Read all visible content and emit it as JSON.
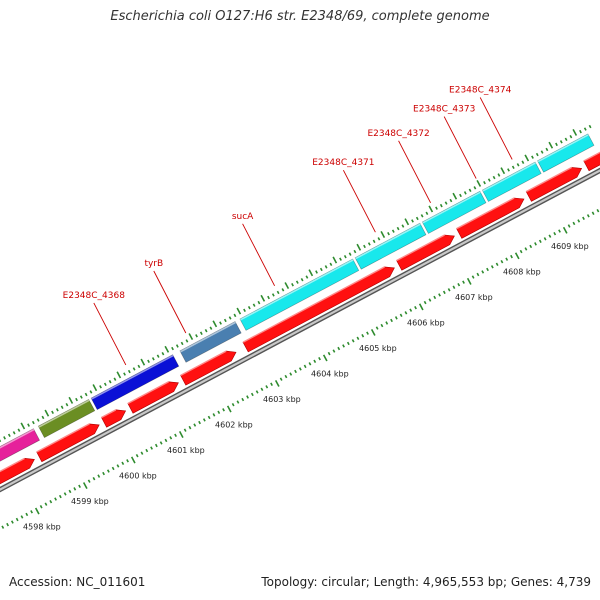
{
  "header": {
    "title": "Escherichia coli O127:H6 str. E2348/69, complete genome"
  },
  "footer": {
    "accession": "Accession: NC_011601",
    "stats": "Topology: circular; Length: 4,965,553 bp; Genes: 4,739"
  },
  "colors": {
    "label_red": "#cc0000",
    "tick_green": "#2e8b2e",
    "track_gray": "#999999",
    "pink": "#e6219b",
    "olive": "#6b8e23",
    "blue": "#0a10d6",
    "steelblue": "#4a7fb0",
    "cyan": "#18e8ec",
    "red": "#ff1010"
  },
  "chart_data": {
    "type": "genome-map",
    "scale_unit": "kbp",
    "scale_labels": [
      {
        "pos": 4598,
        "text": "4598 kbp"
      },
      {
        "pos": 4599,
        "text": "4599 kbp"
      },
      {
        "pos": 4600,
        "text": "4600 kbp"
      },
      {
        "pos": 4601,
        "text": "4601 kbp"
      },
      {
        "pos": 4602,
        "text": "4602 kbp"
      },
      {
        "pos": 4603,
        "text": "4603 kbp"
      },
      {
        "pos": 4604,
        "text": "4604 kbp"
      },
      {
        "pos": 4605,
        "text": "4605 kbp"
      },
      {
        "pos": 4606,
        "text": "4606 kbp"
      },
      {
        "pos": 4607,
        "text": "4607 kbp"
      },
      {
        "pos": 4608,
        "text": "4608 kbp"
      },
      {
        "pos": 4609,
        "text": "4609 kbp"
      }
    ],
    "gene_labels": [
      {
        "name": "E2348C_4368",
        "pos": 4600.7
      },
      {
        "name": "tyrB",
        "pos": 4601.95
      },
      {
        "name": "sucA",
        "pos": 4603.8
      },
      {
        "name": "E2348C_4371",
        "pos": 4605.9
      },
      {
        "name": "E2348C_4372",
        "pos": 4607.05
      },
      {
        "name": "E2348C_4373",
        "pos": 4608.0
      },
      {
        "name": "E2348C_4374",
        "pos": 4608.75
      }
    ],
    "outer_features": [
      {
        "start": 4597.6,
        "end": 4598.65,
        "color": "#e6219b"
      },
      {
        "start": 4598.75,
        "end": 4599.8,
        "color": "#6b8e23"
      },
      {
        "start": 4599.85,
        "end": 4601.55,
        "color": "#0a10d6"
      },
      {
        "start": 4601.7,
        "end": 4602.85,
        "color": "#4a7fb0"
      },
      {
        "start": 4602.95,
        "end": 4605.3,
        "color": "#18e8ec"
      },
      {
        "start": 4605.35,
        "end": 4606.7,
        "color": "#18e8ec"
      },
      {
        "start": 4606.75,
        "end": 4607.95,
        "color": "#18e8ec"
      },
      {
        "start": 4608.0,
        "end": 4609.1,
        "color": "#18e8ec"
      },
      {
        "start": 4609.15,
        "end": 4610.2,
        "color": "#18e8ec"
      }
    ],
    "inner_features": [
      {
        "start": 4597.6,
        "end": 4598.4,
        "color": "#ff1010"
      },
      {
        "start": 4598.5,
        "end": 4599.75,
        "color": "#ff1010"
      },
      {
        "start": 4599.85,
        "end": 4600.3,
        "color": "#ff1010"
      },
      {
        "start": 4600.4,
        "end": 4601.4,
        "color": "#ff1010"
      },
      {
        "start": 4601.5,
        "end": 4602.6,
        "color": "#ff1010"
      },
      {
        "start": 4602.8,
        "end": 4605.9,
        "color": "#ff1010"
      },
      {
        "start": 4606.0,
        "end": 4607.15,
        "color": "#ff1010"
      },
      {
        "start": 4607.25,
        "end": 4608.6,
        "color": "#ff1010"
      },
      {
        "start": 4608.7,
        "end": 4609.8,
        "color": "#ff1010"
      },
      {
        "start": 4609.9,
        "end": 4610.8,
        "color": "#ff1010"
      }
    ]
  }
}
